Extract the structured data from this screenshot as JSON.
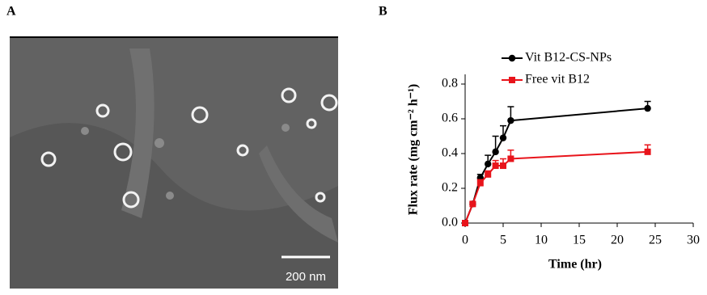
{
  "panel_labels": [
    "A",
    "B"
  ],
  "scale_bar_label": "200 nm",
  "chart_data": {
    "type": "line",
    "xlabel": "Time (hr)",
    "ylabel": "Flux rate (mg cm⁻² h⁻¹)",
    "x": [
      0,
      1,
      2,
      3,
      4,
      5,
      6,
      24
    ],
    "series": [
      {
        "name": "Vit B12-CS-NPs",
        "color": "#000000",
        "marker": "circle",
        "values": [
          0,
          0.11,
          0.26,
          0.34,
          0.41,
          0.49,
          0.59,
          0.66
        ],
        "errors": [
          0,
          0.01,
          0.02,
          0.05,
          0.09,
          0.07,
          0.08,
          0.04
        ]
      },
      {
        "name": "Free vit B12",
        "color": "#e8141b",
        "marker": "square",
        "values": [
          0,
          0.11,
          0.23,
          0.28,
          0.33,
          0.33,
          0.37,
          0.41
        ],
        "errors": [
          0,
          0.01,
          0.02,
          0.02,
          0.03,
          0.04,
          0.05,
          0.04
        ]
      }
    ],
    "xlim": [
      0,
      30
    ],
    "xticks": [
      0,
      5,
      10,
      15,
      20,
      25,
      30
    ],
    "ylim": [
      0,
      0.8
    ],
    "yticks": [
      {
        "value": 0,
        "label": "0.0"
      },
      0.2,
      0.4,
      0.6,
      0.8
    ],
    "legend": "top",
    "grid": false
  }
}
